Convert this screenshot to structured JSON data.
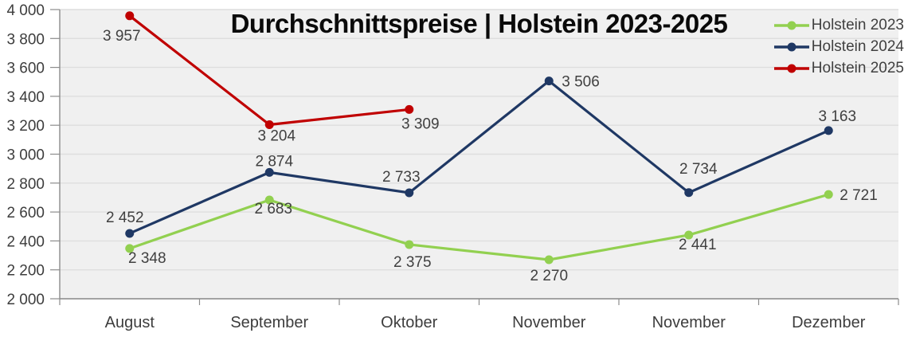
{
  "title": "Durchschnittspreise | Holstein 2023-2025",
  "legend": {
    "position": "top-right",
    "entries": [
      {
        "label": "Holstein 2023",
        "color": "#92D050"
      },
      {
        "label": "Holstein 2024",
        "color": "#1F3864"
      },
      {
        "label": "Holstein 2025",
        "color": "#C00000"
      }
    ]
  },
  "chart_data": {
    "type": "line",
    "title": "Durchschnittspreise | Holstein 2023-2025",
    "categories": [
      "August",
      "September",
      "Oktober",
      "November",
      "November",
      "Dezember"
    ],
    "series": [
      {
        "name": "Holstein 2023",
        "color": "#92D050",
        "values": [
          2348,
          2683,
          2375,
          2270,
          2441,
          2721
        ],
        "value_labels": [
          "2 348",
          "2 683",
          "2 375",
          "2 270",
          "2 441",
          "2 721"
        ]
      },
      {
        "name": "Holstein 2024",
        "color": "#1F3864",
        "values": [
          2452,
          2874,
          2733,
          3506,
          2734,
          3163
        ],
        "value_labels": [
          "2 452",
          "2 874",
          "2 733",
          "3 506",
          "2 734",
          "3 163"
        ]
      },
      {
        "name": "Holstein 2025",
        "color": "#C00000",
        "values": [
          3957,
          3204,
          3309,
          null,
          null,
          null
        ],
        "value_labels": [
          "3 957",
          "3 204",
          "3 309"
        ]
      }
    ],
    "xlabel": "",
    "ylabel": "",
    "ylim": [
      2000,
      4000
    ],
    "ytick_step": 200,
    "ytick_labels": [
      "2 000",
      "2 200",
      "2 400",
      "2 600",
      "2 800",
      "3 000",
      "3 200",
      "3 400",
      "3 600",
      "3 800",
      "4 000"
    ],
    "grid": true,
    "legend_position": "top-right",
    "colors": {
      "plot_bg": "#F0F0F0",
      "grid": "#DEDEDE",
      "axis": "#8C8C8C",
      "text": "#404040",
      "title": "#0A0A0A"
    }
  }
}
